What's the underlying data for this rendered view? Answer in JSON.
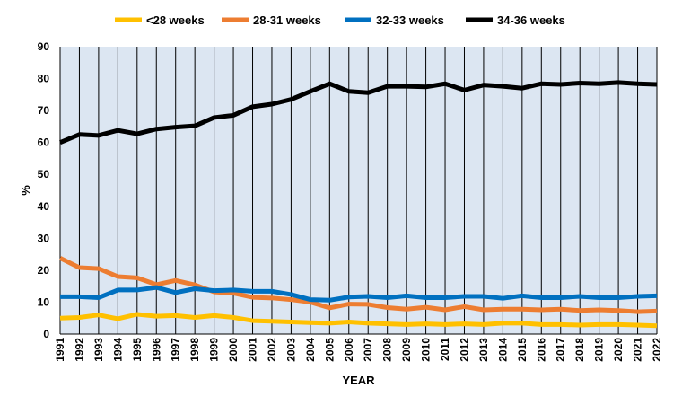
{
  "chart_data": {
    "type": "line",
    "title": "",
    "xlabel": "YEAR",
    "ylabel": "%",
    "ylim": [
      0,
      90
    ],
    "yticks": [
      0,
      10,
      20,
      30,
      40,
      50,
      60,
      70,
      80,
      90
    ],
    "grid": "vertical",
    "background": "#dce6f2",
    "legend_position": "top",
    "categories": [
      "1991",
      "1992",
      "1993",
      "1994",
      "1995",
      "1996",
      "1997",
      "1998",
      "1999",
      "2000",
      "2001",
      "2002",
      "2003",
      "2004",
      "2005",
      "2006",
      "2007",
      "2008",
      "2009",
      "2010",
      "2011",
      "2012",
      "2013",
      "2014",
      "2015",
      "2016",
      "2017",
      "2018",
      "2019",
      "2020",
      "2021",
      "2022"
    ],
    "series": [
      {
        "name": "<28 weeks",
        "color": "#ffc000",
        "values": [
          5.0,
          5.2,
          6.0,
          4.8,
          6.2,
          5.6,
          5.8,
          5.2,
          5.8,
          5.2,
          4.2,
          4.0,
          3.8,
          3.6,
          3.4,
          3.8,
          3.4,
          3.2,
          3.0,
          3.2,
          3.0,
          3.2,
          3.0,
          3.4,
          3.4,
          3.0,
          3.0,
          2.8,
          3.0,
          3.0,
          2.8,
          2.6
        ]
      },
      {
        "name": "28-31 weeks",
        "color": "#ed7d31",
        "values": [
          23.8,
          20.8,
          20.5,
          18.0,
          17.6,
          15.5,
          16.8,
          15.4,
          13.2,
          12.8,
          11.5,
          11.3,
          10.8,
          10.0,
          8.2,
          9.4,
          9.3,
          8.3,
          7.8,
          8.4,
          7.6,
          8.6,
          7.6,
          7.8,
          7.8,
          7.6,
          7.8,
          7.4,
          7.6,
          7.4,
          7.0,
          7.2
        ]
      },
      {
        "name": "32-33 weeks",
        "color": "#0070c0",
        "values": [
          11.7,
          11.7,
          11.4,
          13.8,
          13.8,
          14.6,
          13.0,
          14.2,
          13.6,
          13.8,
          13.4,
          13.4,
          12.4,
          10.8,
          10.6,
          11.6,
          11.8,
          11.4,
          12.0,
          11.4,
          11.4,
          11.8,
          11.8,
          11.2,
          12.0,
          11.4,
          11.4,
          11.8,
          11.4,
          11.4,
          11.8,
          12.0
        ]
      },
      {
        "name": "34-36 weeks",
        "color": "#000000",
        "values": [
          60.0,
          62.5,
          62.2,
          63.8,
          62.7,
          64.2,
          64.8,
          65.2,
          67.8,
          68.5,
          71.2,
          72.0,
          73.5,
          76.0,
          78.4,
          76.0,
          75.6,
          77.6,
          77.6,
          77.4,
          78.4,
          76.4,
          78.0,
          77.6,
          77.0,
          78.4,
          78.2,
          78.6,
          78.4,
          78.8,
          78.4,
          78.2
        ]
      }
    ]
  }
}
